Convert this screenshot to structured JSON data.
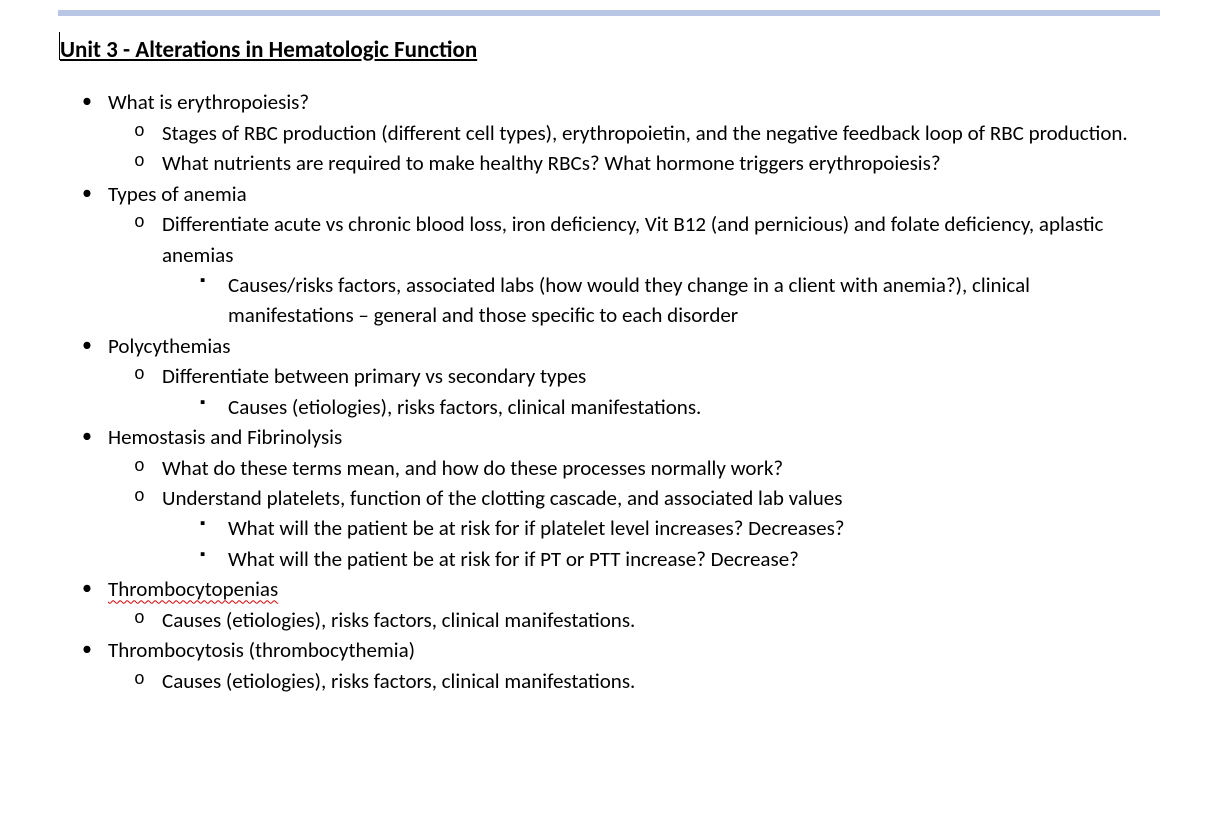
{
  "colors": {
    "top_rule": "#b9c6e6",
    "text": "#000000",
    "background": "#ffffff",
    "spell_error_underline": "#d40000"
  },
  "typography": {
    "body_font_family": "Calibri",
    "body_font_size_pt": 16,
    "heading_font_size_pt": 17,
    "heading_weight": 700,
    "line_height": 1.45
  },
  "bullets": {
    "level1_glyph": "•",
    "level2_glyph": "o",
    "level3_glyph": "▪"
  },
  "heading": "Unit 3 - Alterations in Hematologic Function",
  "outline": [
    {
      "text": "What is erythropoiesis?",
      "children": [
        {
          "text": "Stages of RBC production (different cell types), erythropoietin, and the negative feedback loop of RBC production."
        },
        {
          "text": "What nutrients are required to make healthy RBCs?  What hormone triggers erythropoiesis?"
        }
      ]
    },
    {
      "text": "Types of anemia",
      "children": [
        {
          "text": "Differentiate acute vs chronic blood loss, iron deficiency, Vit B12 (and pernicious) and folate deficiency, aplastic anemias",
          "children": [
            {
              "text": "Causes/risks factors, associated labs (how would they change in a client with anemia?), clinical manifestations – general and those specific to each disorder"
            }
          ]
        }
      ]
    },
    {
      "text": "Polycythemias",
      "children": [
        {
          "text": "Differentiate between primary vs secondary types",
          "children": [
            {
              "text": "Causes (etiologies), risks factors, clinical manifestations."
            }
          ]
        }
      ]
    },
    {
      "text": "Hemostasis and Fibrinolysis",
      "children": [
        {
          "text": "What do these terms mean, and how do these processes normally work?"
        },
        {
          "text": "Understand platelets, function of the clotting cascade, and associated lab values",
          "children": [
            {
              "text": "What will the patient be at risk for if platelet level increases?  Decreases?"
            },
            {
              "text": "What will the patient be at risk for if PT or PTT increase?  Decrease?"
            }
          ]
        }
      ]
    },
    {
      "text": "Thrombocytopenias",
      "spell_error": true,
      "children": [
        {
          "text": "Causes (etiologies), risks factors, clinical manifestations."
        }
      ]
    },
    {
      "text": "Thrombocytosis (thrombocythemia)",
      "children": [
        {
          "text": "Causes (etiologies), risks factors, clinical manifestations."
        }
      ]
    }
  ]
}
